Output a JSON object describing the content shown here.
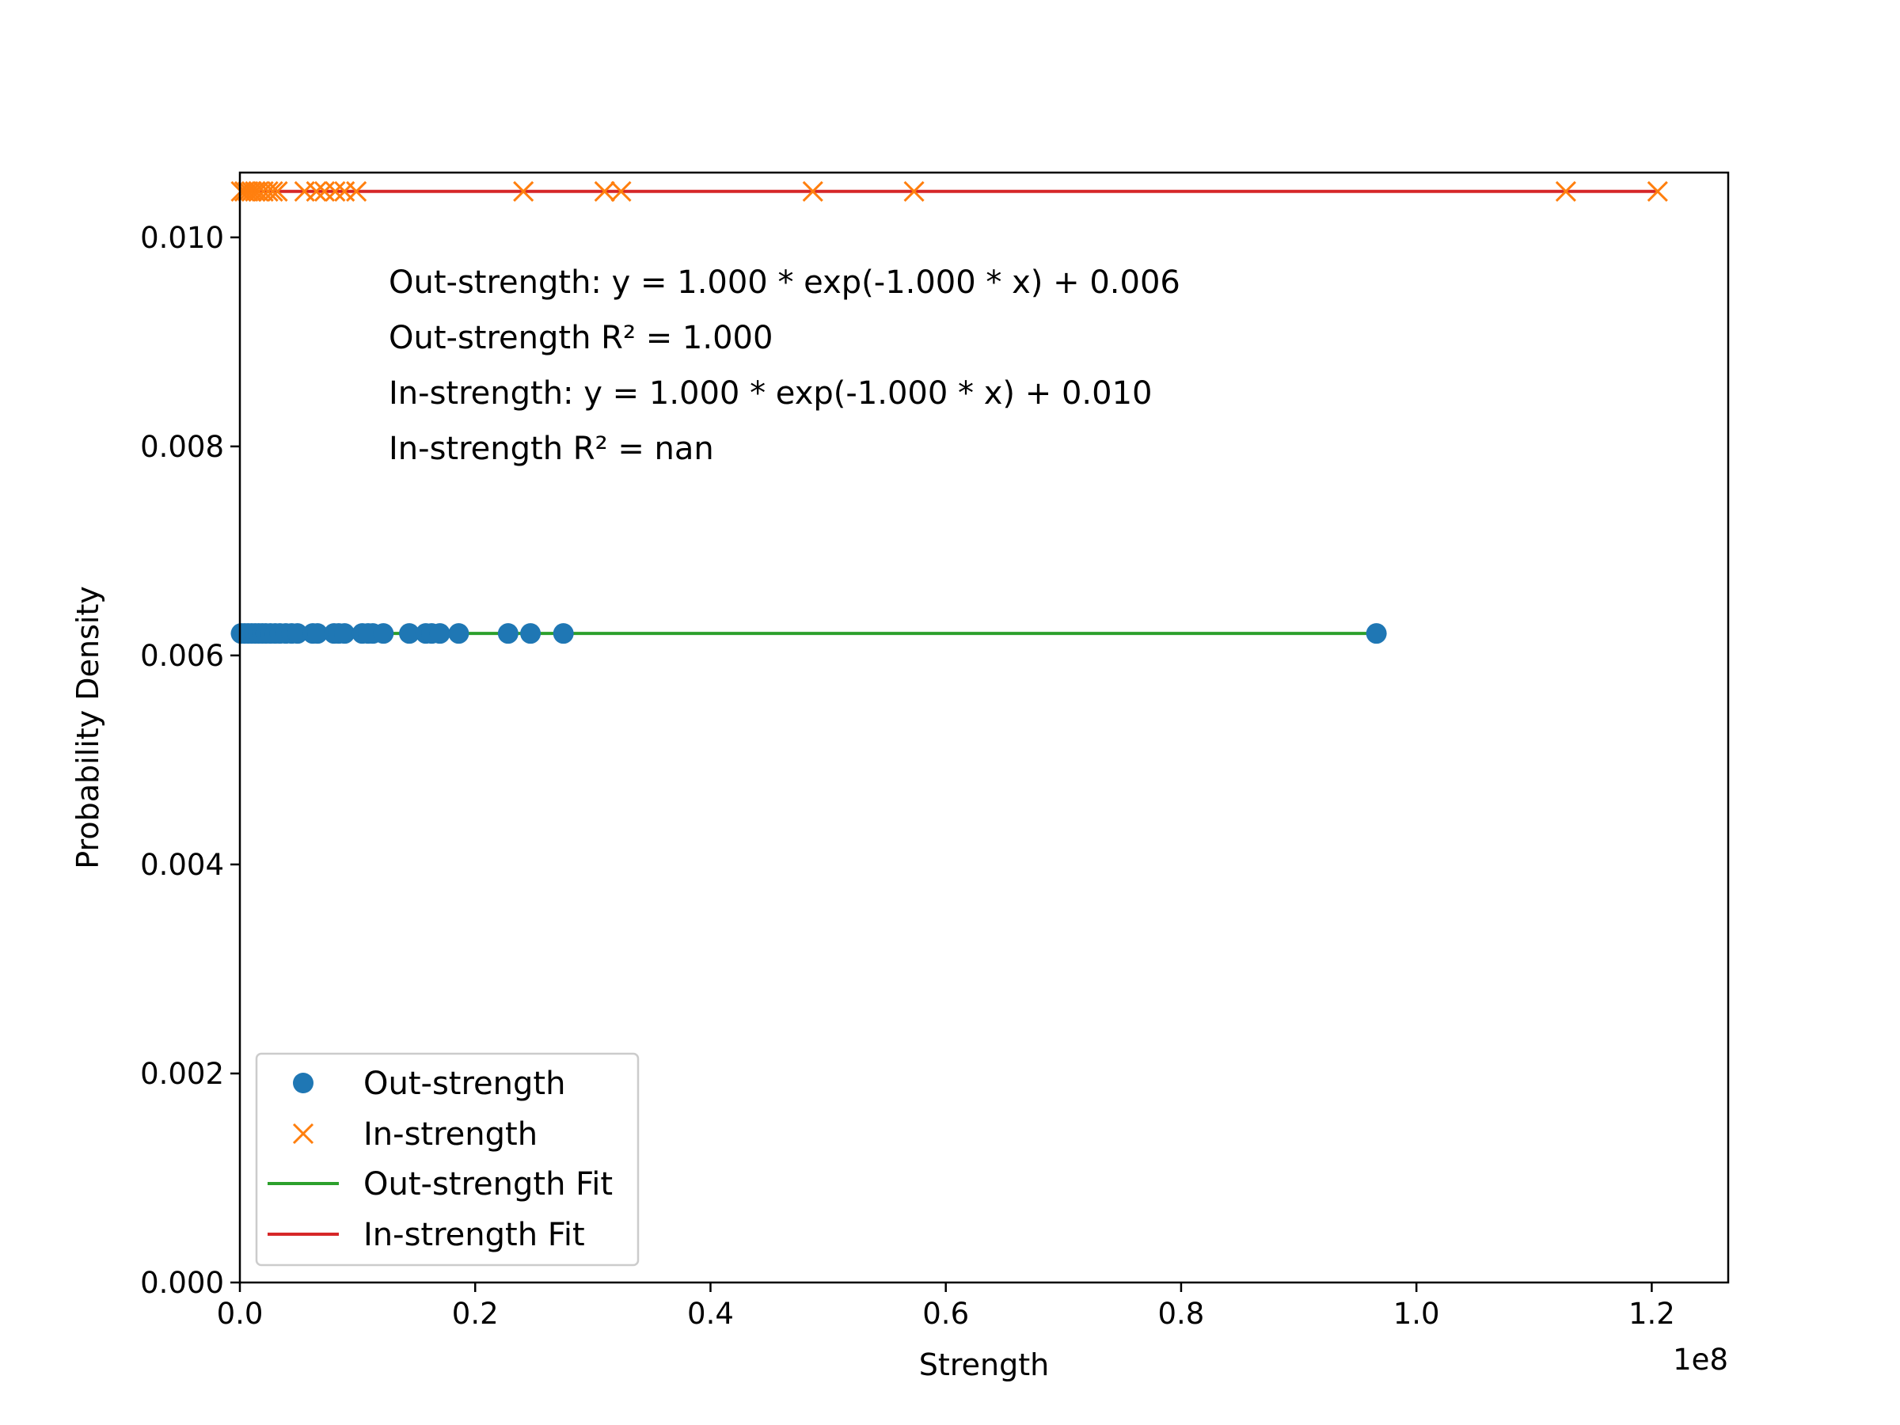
{
  "chart_data": {
    "type": "scatter",
    "xlabel": "Strength",
    "ylabel": "Probability Density",
    "x_offset_label": "1e8",
    "xlim": [
      0,
      1.265
    ],
    "ylim": [
      0,
      0.01062
    ],
    "x_scale_multiplier": 100000000,
    "x_ticks": [
      0.0,
      0.2,
      0.4,
      0.6,
      0.8,
      1.0,
      1.2
    ],
    "x_tick_labels": [
      "0.0",
      "0.2",
      "0.4",
      "0.6",
      "0.8",
      "1.0",
      "1.2"
    ],
    "y_ticks": [
      0.0,
      0.002,
      0.004,
      0.006,
      0.008,
      0.01
    ],
    "y_tick_labels": [
      "0.000",
      "0.002",
      "0.004",
      "0.006",
      "0.008",
      "0.010"
    ],
    "grid": false,
    "legend_position": "lower-left",
    "annotations": [
      "Out-strength: y = 1.000 * exp(-1.000 * x) + 0.006",
      "Out-strength R² = 1.000",
      "In-strength: y = 1.000 * exp(-1.000 * x) + 0.010",
      "In-strength R² = nan"
    ],
    "series": [
      {
        "name": "Out-strength",
        "kind": "scatter",
        "marker": "circle",
        "color": "#1f77b4",
        "y": 0.00621,
        "x": [
          0.001,
          0.004,
          0.007,
          0.01,
          0.013,
          0.016,
          0.019,
          0.022,
          0.026,
          0.03,
          0.034,
          0.039,
          0.044,
          0.049,
          0.062,
          0.066,
          0.08,
          0.084,
          0.089,
          0.104,
          0.109,
          0.113,
          0.122,
          0.144,
          0.158,
          0.163,
          0.17,
          0.186,
          0.228,
          0.247,
          0.275,
          0.966
        ]
      },
      {
        "name": "In-strength",
        "kind": "scatter",
        "marker": "x",
        "color": "#ff7f0e",
        "y": 0.01044,
        "x": [
          0.001,
          0.004,
          0.007,
          0.01,
          0.013,
          0.016,
          0.02,
          0.024,
          0.028,
          0.032,
          0.055,
          0.065,
          0.072,
          0.081,
          0.089,
          0.099,
          0.241,
          0.31,
          0.324,
          0.487,
          0.573,
          1.127,
          1.205
        ]
      },
      {
        "name": "Out-strength Fit",
        "kind": "line",
        "color": "#2ca02c",
        "x": [
          0.0,
          0.966
        ],
        "y": [
          0.00621,
          0.00621
        ]
      },
      {
        "name": "In-strength Fit",
        "kind": "line",
        "color": "#d62728",
        "x": [
          0.0,
          1.205
        ],
        "y": [
          0.01044,
          0.01044
        ]
      }
    ]
  }
}
